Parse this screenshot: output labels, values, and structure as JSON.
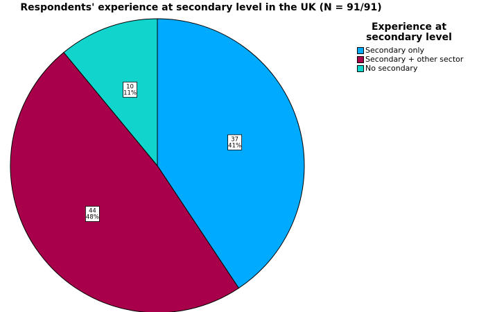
{
  "chart_data": {
    "type": "pie",
    "title": "Respondents' experience at secondary level in the UK (N = 91/91)",
    "legend": {
      "title": "Experience at secondary level",
      "placement": "top-right"
    },
    "slices": [
      {
        "label": "Secondary only",
        "count": 37,
        "percent_label": "41%",
        "color": "#00aaff"
      },
      {
        "label": "Secondary + other sector",
        "count": 44,
        "percent_label": "48%",
        "color": "#a8004a"
      },
      {
        "label": "No secondary",
        "count": 10,
        "percent_label": "11%",
        "color": "#11d4cc"
      }
    ],
    "start_angle": "12 o'clock",
    "direction": "clockwise"
  }
}
